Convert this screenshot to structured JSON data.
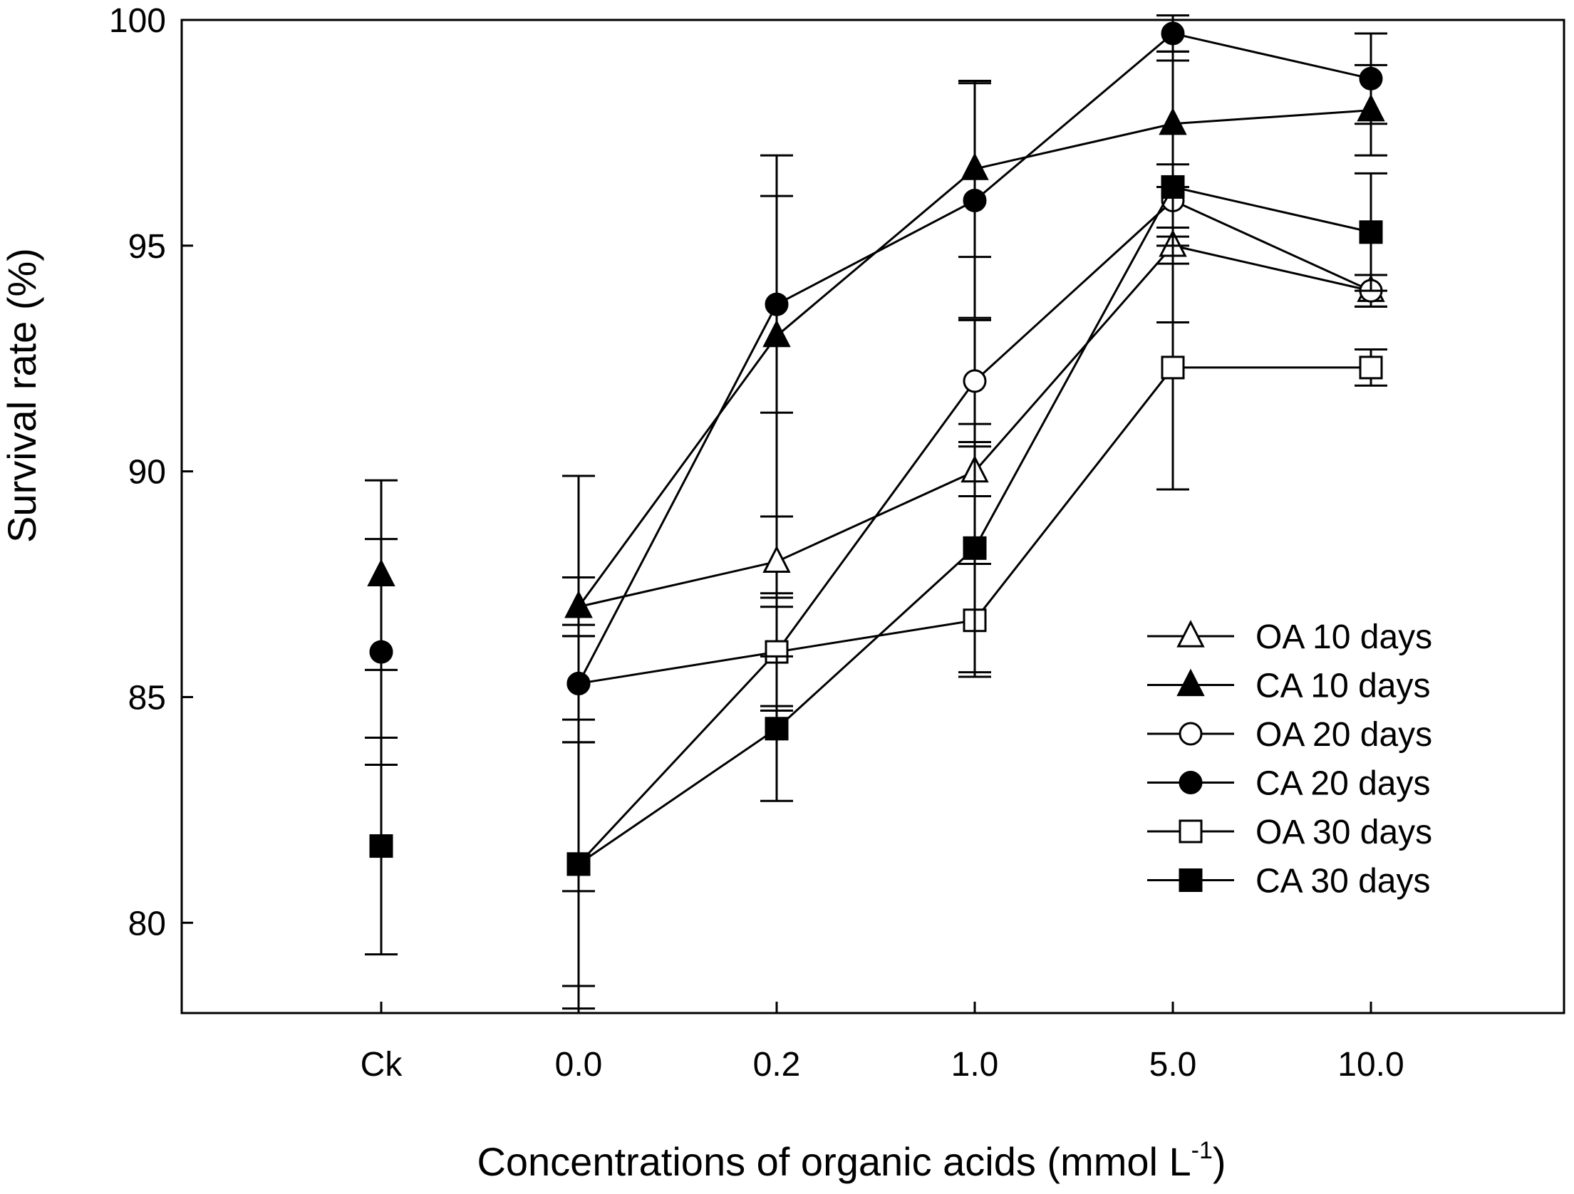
{
  "chart_data": {
    "type": "line",
    "title": "",
    "xlabel": "Concentrations of organic acids (mmol L",
    "xlabel_superscript": "-1",
    "xlabel_suffix": ")",
    "ylabel": "Survival rate (%)",
    "categories": [
      "Ck",
      "0.0",
      "0.2",
      "1.0",
      "5.0",
      "10.0"
    ],
    "ylim": [
      78,
      100
    ],
    "yticks": [
      80,
      85,
      90,
      95,
      100
    ],
    "legend_position": "center-right",
    "series": [
      {
        "name": "OA 10 days",
        "marker": "triangle",
        "filled": false,
        "color": "#000000",
        "values": [
          null,
          87.0,
          88.0,
          90.0,
          95.0,
          94.0
        ],
        "errors": [
          null,
          0.65,
          1.0,
          0.55,
          0.4,
          0.35
        ]
      },
      {
        "name": "CA 10 days",
        "marker": "triangle",
        "filled": true,
        "color": "#000000",
        "values": [
          87.7,
          87.0,
          93.0,
          96.7,
          97.7,
          98.0
        ],
        "errors": [
          2.1,
          0.65,
          4.0,
          1.95,
          1.4,
          1.0
        ]
      },
      {
        "name": "OA 20 days",
        "marker": "circle",
        "filled": false,
        "color": "#000000",
        "values": [
          null,
          85.3,
          86.0,
          92.0,
          96.0,
          94.0
        ],
        "errors": [
          null,
          1.3,
          1.2,
          1.35,
          0.8,
          0.35
        ]
      },
      {
        "name": "CA 20 days",
        "marker": "circle",
        "filled": true,
        "color": "#000000",
        "values": [
          86.0,
          85.3,
          93.7,
          96.0,
          99.7,
          98.7
        ],
        "errors": [
          2.5,
          4.6,
          2.4,
          2.6,
          0.4,
          1.0
        ]
      },
      {
        "name": "OA 30 days",
        "marker": "square",
        "filled": false,
        "color": "#000000",
        "values": [
          null,
          81.3,
          86.0,
          86.7,
          92.3,
          92.3
        ],
        "errors": [
          null,
          2.7,
          1.3,
          1.25,
          2.7,
          0.4
        ]
      },
      {
        "name": "CA 30 days",
        "marker": "square",
        "filled": true,
        "color": "#000000",
        "values": [
          81.7,
          81.3,
          84.3,
          88.3,
          96.3,
          95.3
        ],
        "errors": [
          2.4,
          3.2,
          1.6,
          2.75,
          3.0,
          1.3
        ]
      }
    ]
  }
}
